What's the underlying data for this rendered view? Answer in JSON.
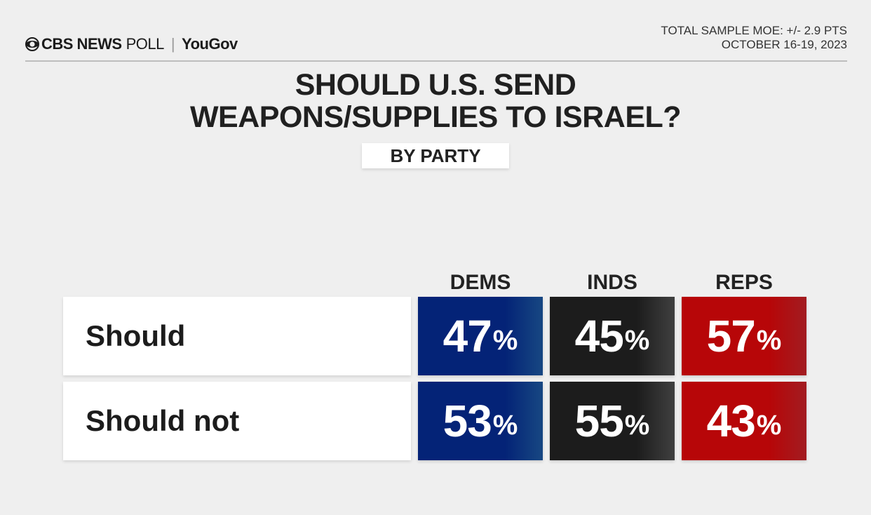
{
  "header": {
    "brand_network": "CBS NEWS",
    "brand_poll": "POLL",
    "brand_separator": "|",
    "brand_partner": "YouGov",
    "moe_line1": "TOTAL SAMPLE MOE: +/- 2.9 PTS",
    "moe_line2": "OCTOBER 16-19, 2023"
  },
  "colors": {
    "dems": "#1f5fae",
    "inds": "#555555",
    "reps": "#d8262c"
  },
  "chart_data": {
    "type": "table",
    "title_line1": "SHOULD U.S. SEND",
    "title_line2": "WEAPONS/SUPPLIES TO ISRAEL?",
    "subtitle": "BY PARTY",
    "columns": [
      "DEMS",
      "INDS",
      "REPS"
    ],
    "rows": [
      {
        "label": "Should",
        "values": [
          47,
          45,
          57
        ]
      },
      {
        "label": "Should not",
        "values": [
          53,
          55,
          43
        ]
      }
    ],
    "unit": "%"
  }
}
